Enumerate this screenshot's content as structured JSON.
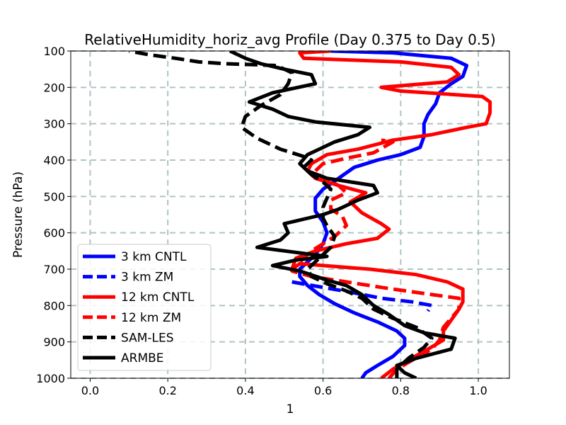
{
  "chart_data": {
    "type": "line",
    "title": "RelativeHumidity_horiz_avg Profile (Day 0.375 to Day 0.5)",
    "xlabel": "1",
    "ylabel": "Pressure (hPa)",
    "xlim": [
      -0.05,
      1.08
    ],
    "ylim": [
      1000,
      100
    ],
    "y_inverted": true,
    "grid": true,
    "legend_position": "lower-left",
    "xticks": [
      0.0,
      0.2,
      0.4,
      0.6,
      0.8,
      1.0
    ],
    "xtick_labels": [
      "0.0",
      "0.2",
      "0.4",
      "0.6",
      "0.8",
      "1.0"
    ],
    "yticks": [
      100,
      200,
      300,
      400,
      500,
      600,
      700,
      800,
      900,
      1000
    ],
    "ytick_labels": [
      "100",
      "200",
      "300",
      "400",
      "500",
      "600",
      "700",
      "800",
      "900",
      "1000"
    ],
    "series": [
      {
        "name": "3 km CNTL",
        "color": "#0000ff",
        "style": "solid",
        "points": [
          [
            0.7,
            1000
          ],
          [
            0.71,
            985
          ],
          [
            0.74,
            965
          ],
          [
            0.78,
            940
          ],
          [
            0.81,
            910
          ],
          [
            0.81,
            890
          ],
          [
            0.79,
            870
          ],
          [
            0.74,
            845
          ],
          [
            0.68,
            820
          ],
          [
            0.63,
            795
          ],
          [
            0.59,
            770
          ],
          [
            0.56,
            745
          ],
          [
            0.54,
            720
          ],
          [
            0.54,
            700
          ],
          [
            0.56,
            680
          ],
          [
            0.58,
            660
          ],
          [
            0.6,
            630
          ],
          [
            0.61,
            600
          ],
          [
            0.6,
            570
          ],
          [
            0.58,
            540
          ],
          [
            0.58,
            505
          ],
          [
            0.6,
            480
          ],
          [
            0.64,
            450
          ],
          [
            0.68,
            420
          ],
          [
            0.74,
            400
          ],
          [
            0.8,
            385
          ],
          [
            0.85,
            365
          ],
          [
            0.86,
            335
          ],
          [
            0.86,
            300
          ],
          [
            0.87,
            275
          ],
          [
            0.89,
            245
          ],
          [
            0.9,
            215
          ],
          [
            0.93,
            190
          ],
          [
            0.96,
            170
          ],
          [
            0.97,
            140
          ],
          [
            0.93,
            120
          ],
          [
            0.78,
            105
          ],
          [
            0.62,
            100
          ]
        ]
      },
      {
        "name": "3 km ZM",
        "color": "#0000ff",
        "style": "dashed",
        "points": [
          [
            0.52,
            735
          ],
          [
            0.6,
            750
          ],
          [
            0.68,
            765
          ],
          [
            0.75,
            780
          ],
          [
            0.83,
            790
          ],
          [
            0.88,
            800
          ],
          [
            0.87,
            815
          ]
        ]
      },
      {
        "name": "12 km CNTL",
        "color": "#ff0000",
        "style": "solid",
        "points": [
          [
            0.75,
            1000
          ],
          [
            0.78,
            975
          ],
          [
            0.82,
            950
          ],
          [
            0.87,
            920
          ],
          [
            0.91,
            895
          ],
          [
            0.91,
            870
          ],
          [
            0.93,
            840
          ],
          [
            0.95,
            810
          ],
          [
            0.96,
            790
          ],
          [
            0.96,
            770
          ],
          [
            0.96,
            755
          ],
          [
            0.92,
            735
          ],
          [
            0.84,
            715
          ],
          [
            0.72,
            700
          ],
          [
            0.6,
            690
          ],
          [
            0.54,
            685
          ],
          [
            0.52,
            700
          ],
          [
            0.53,
            670
          ],
          [
            0.58,
            650
          ],
          [
            0.66,
            630
          ],
          [
            0.74,
            615
          ],
          [
            0.77,
            590
          ],
          [
            0.75,
            575
          ],
          [
            0.7,
            545
          ],
          [
            0.67,
            515
          ],
          [
            0.71,
            490
          ],
          [
            0.64,
            470
          ],
          [
            0.58,
            450
          ],
          [
            0.56,
            430
          ],
          [
            0.57,
            410
          ],
          [
            0.61,
            385
          ],
          [
            0.69,
            370
          ],
          [
            0.78,
            345
          ],
          [
            0.88,
            330
          ],
          [
            0.97,
            310
          ],
          [
            1.02,
            300
          ],
          [
            1.03,
            270
          ],
          [
            1.03,
            240
          ],
          [
            1.01,
            225
          ],
          [
            0.8,
            210
          ],
          [
            0.75,
            200
          ],
          [
            0.92,
            185
          ],
          [
            0.95,
            165
          ],
          [
            0.93,
            145
          ],
          [
            0.8,
            130
          ],
          [
            0.55,
            120
          ],
          [
            0.54,
            105
          ],
          [
            0.62,
            100
          ]
        ]
      },
      {
        "name": "12 km ZM",
        "color": "#ff0000",
        "style": "dashed",
        "points": [
          [
            0.77,
            1000
          ],
          [
            0.79,
            975
          ],
          [
            0.83,
            950
          ],
          [
            0.88,
            920
          ],
          [
            0.9,
            895
          ],
          [
            0.91,
            860
          ],
          [
            0.93,
            835
          ],
          [
            0.95,
            810
          ],
          [
            0.95,
            780
          ],
          [
            0.88,
            770
          ],
          [
            0.75,
            750
          ],
          [
            0.66,
            735
          ],
          [
            0.57,
            720
          ],
          [
            0.52,
            705
          ],
          [
            0.53,
            690
          ],
          [
            0.55,
            670
          ],
          [
            0.57,
            650
          ],
          [
            0.6,
            630
          ],
          [
            0.63,
            610
          ],
          [
            0.66,
            580
          ],
          [
            0.65,
            555
          ],
          [
            0.62,
            535
          ],
          [
            0.62,
            510
          ],
          [
            0.66,
            490
          ],
          [
            0.64,
            470
          ],
          [
            0.6,
            450
          ],
          [
            0.58,
            430
          ],
          [
            0.6,
            410
          ],
          [
            0.66,
            395
          ],
          [
            0.73,
            380
          ],
          [
            0.78,
            350
          ],
          [
            0.75,
            345
          ]
        ]
      },
      {
        "name": "SAM-LES",
        "color": "#000000",
        "style": "dashed",
        "points": [
          [
            0.79,
            1000
          ],
          [
            0.79,
            975
          ],
          [
            0.82,
            945
          ],
          [
            0.86,
            915
          ],
          [
            0.88,
            890
          ],
          [
            0.84,
            860
          ],
          [
            0.78,
            835
          ],
          [
            0.73,
            810
          ],
          [
            0.7,
            780
          ],
          [
            0.66,
            760
          ],
          [
            0.61,
            740
          ],
          [
            0.57,
            720
          ],
          [
            0.56,
            700
          ],
          [
            0.58,
            680
          ],
          [
            0.6,
            660
          ],
          [
            0.62,
            640
          ],
          [
            0.63,
            610
          ],
          [
            0.61,
            580
          ],
          [
            0.6,
            560
          ],
          [
            0.6,
            530
          ],
          [
            0.61,
            505
          ],
          [
            0.62,
            480
          ],
          [
            0.6,
            460
          ],
          [
            0.57,
            440
          ],
          [
            0.55,
            420
          ],
          [
            0.57,
            400
          ],
          [
            0.55,
            390
          ],
          [
            0.49,
            370
          ],
          [
            0.43,
            340
          ],
          [
            0.39,
            310
          ],
          [
            0.4,
            280
          ],
          [
            0.44,
            250
          ],
          [
            0.49,
            220
          ],
          [
            0.51,
            190
          ],
          [
            0.52,
            160
          ],
          [
            0.48,
            140
          ],
          [
            0.35,
            135
          ],
          [
            0.28,
            130
          ],
          [
            0.22,
            120
          ],
          [
            0.15,
            110
          ],
          [
            0.1,
            100
          ]
        ]
      },
      {
        "name": "ARMBE",
        "color": "#000000",
        "style": "solid",
        "points": [
          [
            0.84,
            1000
          ],
          [
            0.81,
            985
          ],
          [
            0.79,
            965
          ],
          [
            0.84,
            945
          ],
          [
            0.93,
            920
          ],
          [
            0.94,
            890
          ],
          [
            0.86,
            875
          ],
          [
            0.81,
            855
          ],
          [
            0.77,
            825
          ],
          [
            0.73,
            800
          ],
          [
            0.7,
            770
          ],
          [
            0.66,
            745
          ],
          [
            0.61,
            730
          ],
          [
            0.54,
            705
          ],
          [
            0.47,
            690
          ],
          [
            0.53,
            675
          ],
          [
            0.61,
            665
          ],
          [
            0.43,
            640
          ],
          [
            0.49,
            620
          ],
          [
            0.51,
            600
          ],
          [
            0.5,
            575
          ],
          [
            0.6,
            550
          ],
          [
            0.64,
            535
          ],
          [
            0.69,
            510
          ],
          [
            0.74,
            490
          ],
          [
            0.73,
            470
          ],
          [
            0.61,
            450
          ],
          [
            0.56,
            430
          ],
          [
            0.54,
            410
          ],
          [
            0.56,
            385
          ],
          [
            0.59,
            370
          ],
          [
            0.63,
            350
          ],
          [
            0.69,
            330
          ],
          [
            0.72,
            310
          ],
          [
            0.58,
            295
          ],
          [
            0.51,
            280
          ],
          [
            0.47,
            260
          ],
          [
            0.41,
            240
          ],
          [
            0.47,
            215
          ],
          [
            0.58,
            190
          ],
          [
            0.57,
            165
          ],
          [
            0.5,
            150
          ],
          [
            0.44,
            135
          ],
          [
            0.4,
            120
          ],
          [
            0.36,
            100
          ]
        ]
      }
    ]
  }
}
